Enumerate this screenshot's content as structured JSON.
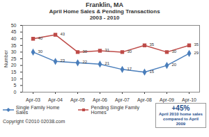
{
  "chart_data": {
    "type": "line",
    "title": "Franklin, MA",
    "subtitle": [
      "April Home Sales & Pending Transactions",
      "2003 - 2010"
    ],
    "y_label": "Number",
    "categories": [
      "Apr-03",
      "Apr-04",
      "Apr-05",
      "Apr-06",
      "Apr-07",
      "Apr-08",
      "Apr-09",
      "Apr-10"
    ],
    "series": [
      {
        "name": "Single Family Home Sales",
        "color": "#4a7ebb",
        "marker": "diamond",
        "line_style": "solid",
        "values": [
          30,
          23,
          22,
          21,
          17,
          15,
          20,
          29
        ]
      },
      {
        "name": "Pending Single Family Homes",
        "color": "#be4b48",
        "marker": "square",
        "line_style": "solid",
        "values": [
          40,
          43,
          30,
          31,
          30,
          35,
          30,
          35
        ]
      }
    ],
    "ylim": [
      0,
      50
    ],
    "yticks": [
      0,
      5,
      10,
      15,
      20,
      25,
      30,
      35,
      40,
      45,
      50
    ],
    "grid": false,
    "data_labels": true,
    "legend": "bottom",
    "annotations": [
      "+45%",
      "April 2010 home sales compared to April 2009"
    ],
    "caption": "Copyright ©2010 02038.com"
  }
}
